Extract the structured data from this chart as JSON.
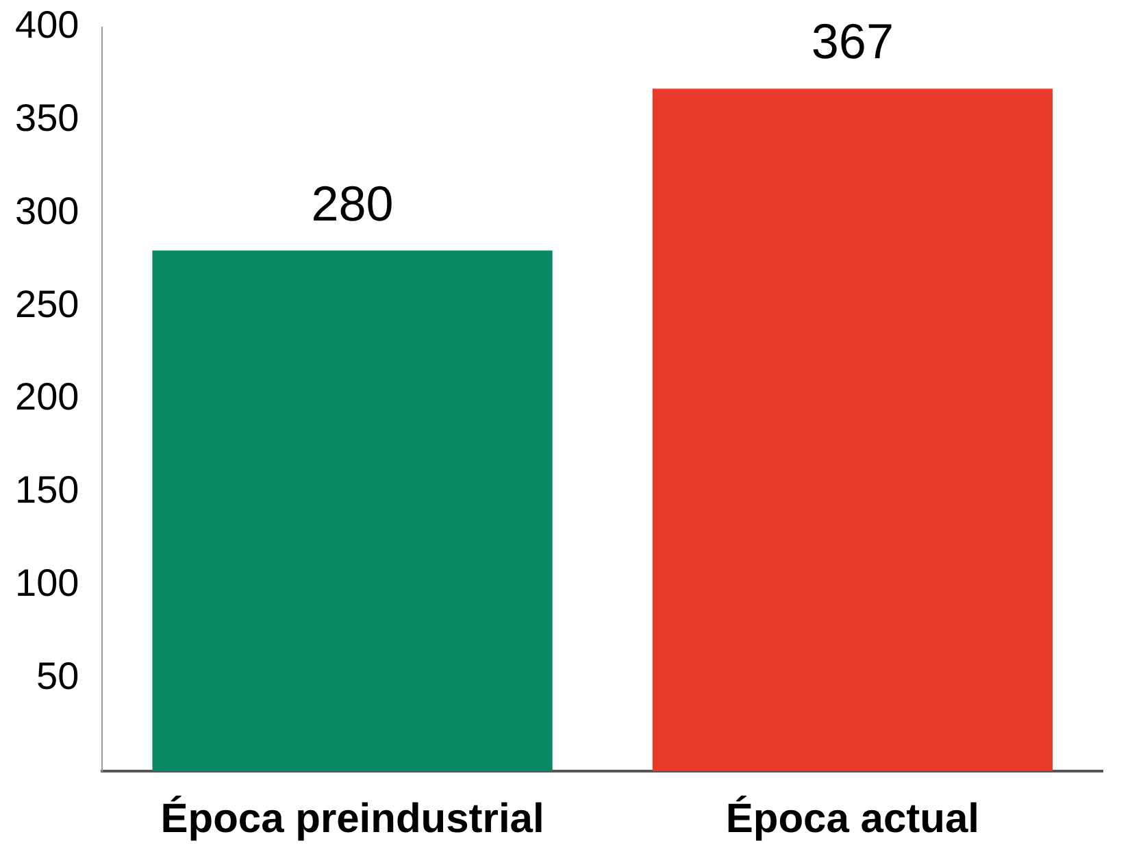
{
  "chart_data": {
    "type": "bar",
    "categories": [
      "Época preindustrial",
      "Época actual"
    ],
    "values": [
      280,
      367
    ],
    "colors": [
      "#0a8964",
      "#e83a28"
    ],
    "ylim": [
      0,
      400
    ],
    "yticks": [
      50,
      100,
      150,
      200,
      250,
      300,
      350,
      400
    ],
    "grid": false,
    "legend": false,
    "data_labels": true
  }
}
